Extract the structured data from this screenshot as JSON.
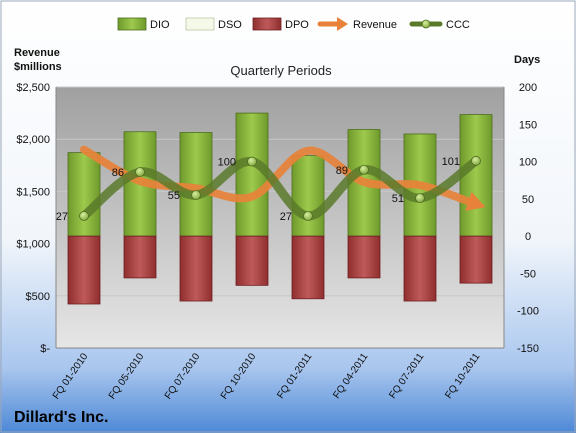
{
  "chart_data": {
    "type": "bar",
    "title": "Quarterly Periods",
    "company": "Dillard's Inc.",
    "left_axis_title_line1": "Revenue",
    "left_axis_title_line2": "$millions",
    "right_axis_title": "Days",
    "categories": [
      "FQ 01-2010",
      "FQ 05-2010",
      "FQ 07-2010",
      "FQ 10-2010",
      "FQ 01-2011",
      "FQ 04-2011",
      "FQ 07-2011",
      "FQ 10-2011"
    ],
    "left_axis": {
      "min": 0,
      "max": 2500,
      "ticks": [
        0,
        500,
        1000,
        1500,
        2000,
        2500
      ],
      "tick_labels": [
        "$-",
        "$500",
        "$1,000",
        "$1,500",
        "$2,000",
        "$2,500"
      ]
    },
    "right_axis": {
      "min": -150,
      "max": 200,
      "ticks": [
        -150,
        -100,
        -50,
        0,
        50,
        100,
        150,
        200
      ],
      "tick_labels": [
        "-150",
        "-100",
        "-50",
        "0",
        "50",
        "100",
        "150",
        "200"
      ]
    },
    "legend": {
      "placement": "top",
      "entries": [
        "DIO",
        "DSO",
        "DPO",
        "Revenue",
        "CCC"
      ]
    },
    "series": [
      {
        "name": "DIO",
        "axis": "right",
        "values": [
          112,
          140,
          139,
          165,
          108,
          143,
          137,
          163
        ]
      },
      {
        "name": "DSO",
        "axis": "right",
        "values": [
          0,
          0,
          0,
          0,
          0,
          0,
          0,
          0
        ]
      },
      {
        "name": "DPO",
        "axis": "right",
        "values": [
          -91,
          -56,
          -87,
          -66,
          -84,
          -56,
          -87,
          -63
        ]
      },
      {
        "name": "Revenue",
        "axis": "left",
        "values": [
          1900,
          1600,
          1530,
          1450,
          1890,
          1590,
          1560,
          1380
        ]
      },
      {
        "name": "CCC",
        "axis": "right",
        "values": [
          27,
          86,
          55,
          100,
          27,
          89,
          51,
          101
        ]
      }
    ],
    "data_labels": {
      "series": "CCC",
      "labels": [
        "27",
        "86",
        "55",
        "100",
        "27",
        "89",
        "51",
        "101"
      ]
    },
    "grid": true,
    "colors": {
      "DIO": "#8db83e",
      "DSO": "#e8f1d8",
      "DPO": "#a83a3a",
      "Revenue": "#e8823a",
      "CCC": "#5a7a2a",
      "plot_background_top": "#9e9e9e",
      "plot_background_bottom": "#e3e3e3",
      "page_background_top": "#ffffff",
      "page_background_bottom": "#5590d8"
    }
  }
}
